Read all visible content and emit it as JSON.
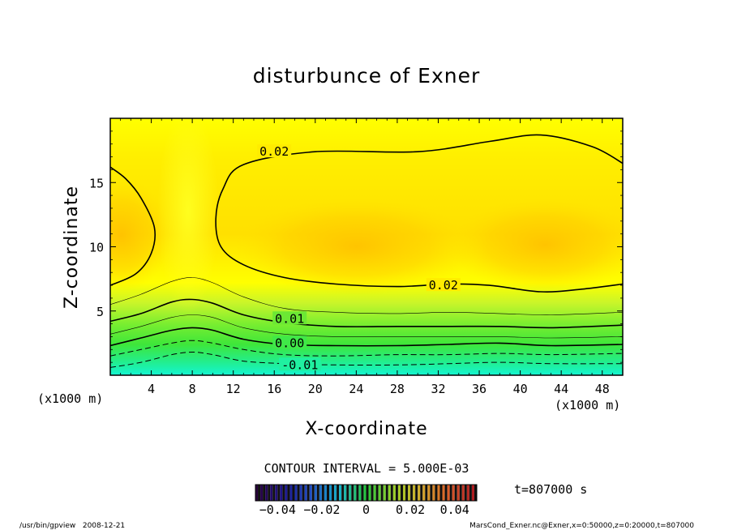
{
  "chart_data": {
    "type": "contour",
    "title": "disturbunce of Exner",
    "xlabel": "X-coordinate",
    "ylabel": "Z-coordinate",
    "x_unit_left": "(x1000 m)",
    "x_unit_right": "(x1000 m)",
    "xlim": [
      0,
      50
    ],
    "ylim": [
      0,
      20
    ],
    "x_ticks": [
      {
        "value": 4,
        "label": "4"
      },
      {
        "value": 8,
        "label": "8"
      },
      {
        "value": 12,
        "label": "12"
      },
      {
        "value": 16,
        "label": "16"
      },
      {
        "value": 20,
        "label": "20"
      },
      {
        "value": 24,
        "label": "24"
      },
      {
        "value": 28,
        "label": "28"
      },
      {
        "value": 32,
        "label": "32"
      },
      {
        "value": 36,
        "label": "36"
      },
      {
        "value": 40,
        "label": "40"
      },
      {
        "value": 44,
        "label": "44"
      },
      {
        "value": 48,
        "label": "48"
      }
    ],
    "y_ticks": [
      {
        "value": 5,
        "label": "5"
      },
      {
        "value": 10,
        "label": "10"
      },
      {
        "value": 15,
        "label": "15"
      }
    ],
    "contour_interval_label": "CONTOUR INTERVAL = 5.000E-03",
    "time_label": "t=807000 s",
    "contour_labels": [
      {
        "text": "0.02",
        "x": 16,
        "z": 17.4,
        "level": 0.02
      },
      {
        "text": "0.02",
        "x": 32.5,
        "z": 7.0,
        "level": 0.02
      },
      {
        "text": "0.01",
        "x": 17.5,
        "z": 4.4,
        "level": 0.01
      },
      {
        "text": "0.00",
        "x": 17.5,
        "z": 2.5,
        "level": 0.0
      },
      {
        "text": "-0.01",
        "x": 18.5,
        "z": 0.8,
        "level": -0.01
      }
    ],
    "contours": [
      {
        "level": 0.02,
        "style": "thick",
        "points": [
          [
            0,
            16.2
          ],
          [
            1.5,
            15.3
          ],
          [
            3,
            13.8
          ],
          [
            4.3,
            11.5
          ],
          [
            4.0,
            9.5
          ],
          [
            2.5,
            7.9
          ],
          [
            0,
            7.0
          ]
        ]
      },
      {
        "level": 0.02,
        "style": "thick",
        "points": [
          [
            50,
            16.5
          ],
          [
            47,
            17.8
          ],
          [
            42,
            18.7
          ],
          [
            37,
            18.2
          ],
          [
            30,
            17.4
          ],
          [
            20,
            17.4
          ],
          [
            13,
            16.4
          ],
          [
            11,
            14.5
          ],
          [
            10.3,
            12.2
          ],
          [
            10.8,
            10.0
          ],
          [
            13,
            8.6
          ],
          [
            17,
            7.6
          ],
          [
            22,
            7.1
          ],
          [
            28,
            6.9
          ],
          [
            33,
            7.1
          ],
          [
            37,
            7.0
          ],
          [
            42,
            6.5
          ],
          [
            46,
            6.7
          ],
          [
            50,
            7.1
          ]
        ]
      },
      {
        "level": 0.015,
        "style": "thin",
        "points": [
          [
            0,
            5.5
          ],
          [
            3,
            6.3
          ],
          [
            6,
            7.3
          ],
          [
            8,
            7.6
          ],
          [
            10,
            7.2
          ],
          [
            13,
            6.1
          ],
          [
            17,
            5.2
          ],
          [
            22,
            4.9
          ],
          [
            28,
            4.8
          ],
          [
            33,
            4.9
          ],
          [
            38,
            4.8
          ],
          [
            43,
            4.7
          ],
          [
            50,
            4.9
          ]
        ]
      },
      {
        "level": 0.01,
        "style": "thick",
        "points": [
          [
            0,
            4.2
          ],
          [
            3,
            4.8
          ],
          [
            6,
            5.7
          ],
          [
            8,
            5.9
          ],
          [
            10,
            5.6
          ],
          [
            13,
            4.7
          ],
          [
            17,
            4.1
          ],
          [
            22,
            3.8
          ],
          [
            28,
            3.8
          ],
          [
            33,
            3.8
          ],
          [
            38,
            3.8
          ],
          [
            43,
            3.7
          ],
          [
            50,
            3.9
          ]
        ]
      },
      {
        "level": 0.005,
        "style": "thin",
        "points": [
          [
            0,
            3.2
          ],
          [
            3,
            3.8
          ],
          [
            6,
            4.5
          ],
          [
            8,
            4.7
          ],
          [
            10,
            4.5
          ],
          [
            13,
            3.7
          ],
          [
            17,
            3.2
          ],
          [
            22,
            3.0
          ],
          [
            28,
            3.0
          ],
          [
            33,
            3.0
          ],
          [
            38,
            3.0
          ],
          [
            43,
            2.9
          ],
          [
            50,
            3.0
          ]
        ]
      },
      {
        "level": 0.0,
        "style": "thick",
        "points": [
          [
            0,
            2.3
          ],
          [
            3,
            2.9
          ],
          [
            6,
            3.5
          ],
          [
            8,
            3.7
          ],
          [
            10,
            3.5
          ],
          [
            13,
            2.8
          ],
          [
            17,
            2.4
          ],
          [
            22,
            2.3
          ],
          [
            28,
            2.3
          ],
          [
            33,
            2.4
          ],
          [
            38,
            2.5
          ],
          [
            43,
            2.3
          ],
          [
            50,
            2.4
          ]
        ]
      },
      {
        "level": -0.005,
        "style": "dash",
        "points": [
          [
            0,
            1.5
          ],
          [
            3,
            2.0
          ],
          [
            6,
            2.5
          ],
          [
            8,
            2.7
          ],
          [
            10,
            2.5
          ],
          [
            13,
            2.0
          ],
          [
            17,
            1.6
          ],
          [
            22,
            1.5
          ],
          [
            28,
            1.6
          ],
          [
            33,
            1.6
          ],
          [
            38,
            1.7
          ],
          [
            43,
            1.6
          ],
          [
            50,
            1.7
          ]
        ]
      },
      {
        "level": -0.01,
        "style": "dash",
        "points": [
          [
            0,
            0.6
          ],
          [
            3,
            1.0
          ],
          [
            6,
            1.6
          ],
          [
            8,
            1.8
          ],
          [
            10,
            1.6
          ],
          [
            13,
            1.1
          ],
          [
            17,
            0.9
          ],
          [
            22,
            0.8
          ],
          [
            28,
            0.8
          ],
          [
            33,
            0.9
          ],
          [
            38,
            1.0
          ],
          [
            43,
            0.9
          ],
          [
            50,
            0.9
          ]
        ]
      }
    ],
    "colorbar": {
      "min": -0.05,
      "max": 0.05,
      "ticks": [
        {
          "value": -0.04,
          "label": "−0.04"
        },
        {
          "value": -0.02,
          "label": "−0.02"
        },
        {
          "value": 0,
          "label": "0"
        },
        {
          "value": 0.02,
          "label": "0.02"
        },
        {
          "value": 0.04,
          "label": "0.04"
        }
      ]
    },
    "colors": {
      "field_low": "#14f5d2",
      "field_mid_green": "#3ee63a",
      "field_yellow_green": "#c8f52a",
      "field_yellow": "#ffff00",
      "field_high": "#ffc800",
      "frame": "#000000"
    }
  },
  "footer": {
    "left": "/usr/bin/gpview   2008-12-21",
    "right": "MarsCond_Exner.nc@Exner,x=0:50000,z=0:20000,t=807000"
  }
}
